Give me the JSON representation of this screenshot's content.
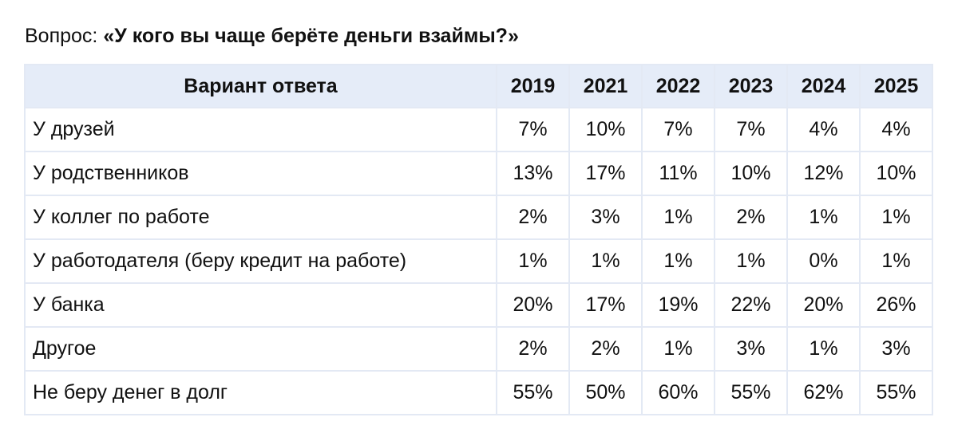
{
  "question": {
    "prefix": "Вопрос:",
    "text": "«У кого вы чаще берёте деньги взаймы?»"
  },
  "table": {
    "header_label": "Вариант ответа",
    "years": [
      "2019",
      "2021",
      "2022",
      "2023",
      "2024",
      "2025"
    ],
    "rows": [
      {
        "label": "У друзей",
        "values": [
          "7%",
          "10%",
          "7%",
          "7%",
          "4%",
          "4%"
        ]
      },
      {
        "label": "У родственников",
        "values": [
          "13%",
          "17%",
          "11%",
          "10%",
          "12%",
          "10%"
        ]
      },
      {
        "label": "У коллег по работе",
        "values": [
          "2%",
          "3%",
          "1%",
          "2%",
          "1%",
          "1%"
        ]
      },
      {
        "label": "У работодателя (беру кредит на работе)",
        "values": [
          "1%",
          "1%",
          "1%",
          "1%",
          "0%",
          "1%"
        ]
      },
      {
        "label": "У банка",
        "values": [
          "20%",
          "17%",
          "19%",
          "22%",
          "20%",
          "26%"
        ]
      },
      {
        "label": "Другое",
        "values": [
          "2%",
          "2%",
          "1%",
          "3%",
          "1%",
          "3%"
        ]
      },
      {
        "label": "Не беру денег в долг",
        "values": [
          "55%",
          "50%",
          "60%",
          "55%",
          "62%",
          "55%"
        ]
      }
    ]
  },
  "colors": {
    "header_background": "#e5ecf8",
    "grid_line": "#e3e9f4",
    "text": "#111111"
  }
}
